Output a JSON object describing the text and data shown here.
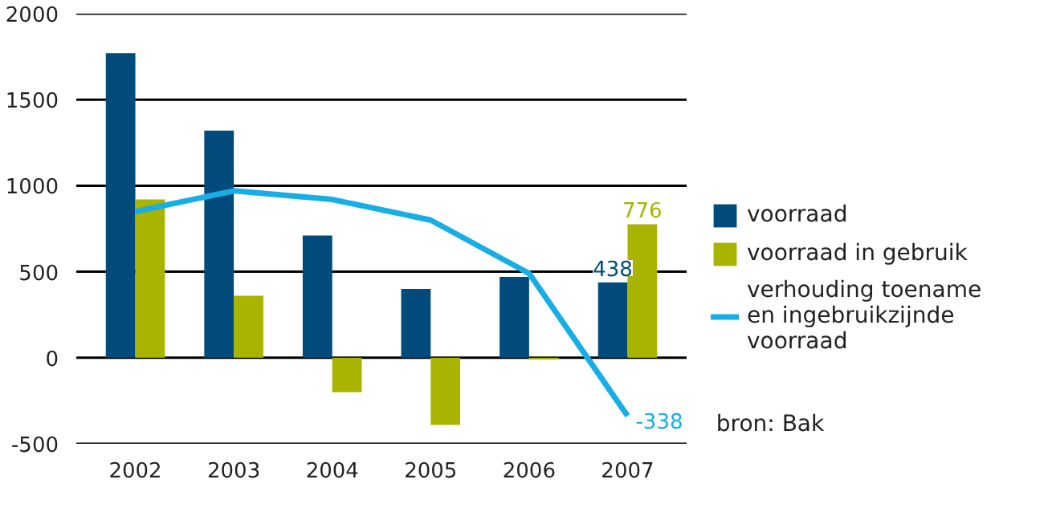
{
  "chart_data": {
    "type": "bar",
    "categories": [
      "2002",
      "2003",
      "2004",
      "2005",
      "2006",
      "2007"
    ],
    "series": [
      {
        "name": "voorraad",
        "color": "#004a7c",
        "values": [
          1770,
          1320,
          710,
          400,
          470,
          438
        ],
        "value_labels": [
          null,
          null,
          null,
          null,
          null,
          "438"
        ]
      },
      {
        "name": "voorraad in gebruik",
        "color": "#a8b400",
        "values": [
          920,
          360,
          -200,
          -390,
          -10,
          776
        ],
        "value_labels": [
          null,
          null,
          null,
          null,
          null,
          "776"
        ]
      },
      {
        "name": "verhouding toename en ingebruikzijnde voorraad",
        "type": "line",
        "color": "#16aee4",
        "values": [
          850,
          970,
          920,
          800,
          490,
          -338
        ],
        "value_labels": [
          null,
          null,
          null,
          null,
          null,
          "-338"
        ]
      }
    ],
    "ylim": [
      -500,
      2000
    ],
    "yticks": [
      -500,
      0,
      500,
      1000,
      1500,
      2000
    ],
    "grid": "y",
    "legend": "right",
    "marker": "none",
    "annotations": [
      "bron: Bak"
    ]
  }
}
